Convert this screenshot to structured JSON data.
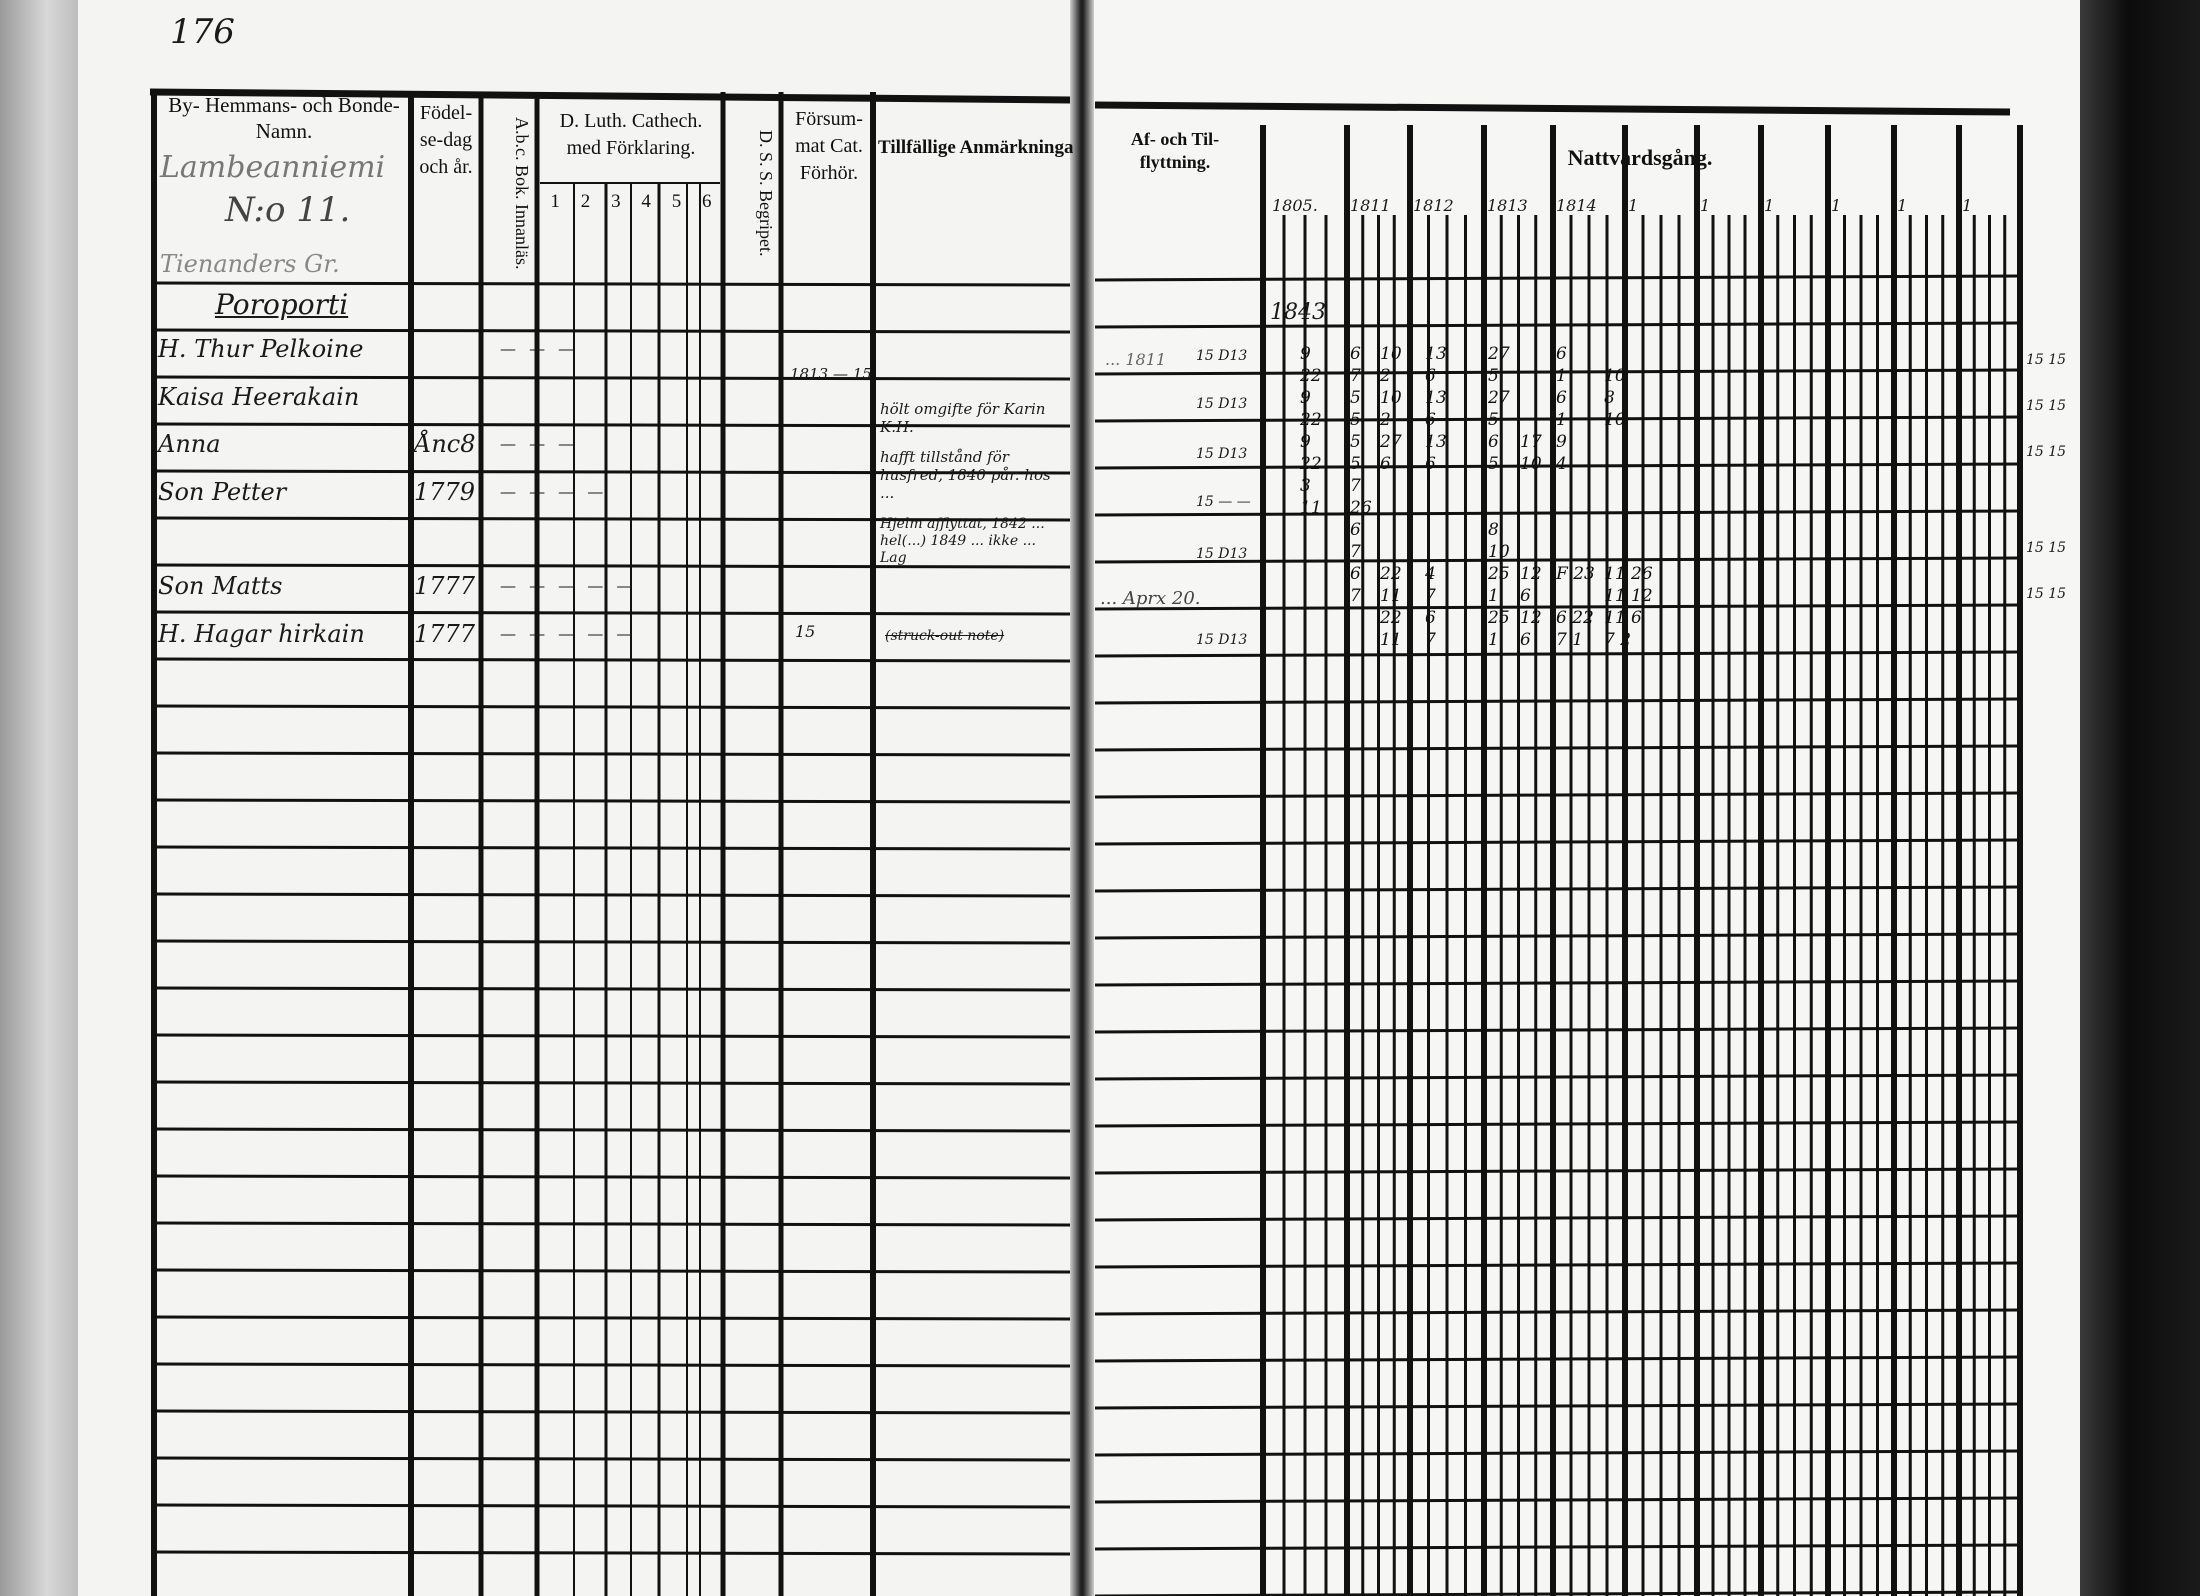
{
  "page_number": "176",
  "left_page": {
    "headers": {
      "name": "By- Hemmans- och Bonde-Namn.",
      "birth": "Födel-se-dag och år.",
      "abc": "A.b.c. Bok. Innanläs.",
      "catechism": "D. Luth. Cathech. med Förklaring.",
      "catechism_parts": [
        "1",
        "2",
        "3",
        "4",
        "5",
        "6"
      ],
      "dss": "D. S. S. Begripet.",
      "missed": "Försum-mat Cat. Förhör.",
      "remarks": "Tillfällige Anmärkningar."
    },
    "village": "Lambeanniemi",
    "farm_number": "N:o 11.",
    "sub_note": "Tienanders Gr.",
    "place": "Poroporti",
    "entries": [
      {
        "name": "H. Thur Pelkoine",
        "birth": "",
        "marks": "— — —"
      },
      {
        "name": "Kaisa Heerakain",
        "birth": "",
        "marks": ""
      },
      {
        "name": "Anna",
        "birth": "Ånc8",
        "marks": "— — —"
      },
      {
        "name": "Son Petter",
        "birth": "1779",
        "marks": "— — — —"
      },
      {
        "name": "Son Matts",
        "birth": "1777",
        "marks": "— — — — —"
      },
      {
        "name": "H. Hagar hirkain",
        "birth": "1777",
        "marks": "— — — — —"
      }
    ],
    "missed_marks": [
      "1813 — 15",
      "15"
    ],
    "remarks": [
      "hölt omgifte för Karin K.H.",
      "hafft tillstånd för husfred, 1840 pår. hos ...",
      "Hjelm afflyttat, 1842 ... hel(...) 1849 ... ikke ... Lag",
      "(struck-out note)"
    ]
  },
  "right_page": {
    "headers": {
      "moving": "Af- och Til- flyttning.",
      "communion": "Nattvardsgång.",
      "years": [
        "1805.",
        "1811",
        "1812",
        "1813",
        "1814",
        "1",
        "1",
        "1",
        "1",
        "1",
        "1"
      ]
    },
    "moving_notes": [
      "... 1811",
      "... Aprx 20."
    ],
    "moving_marks": [
      "15 D13",
      "15 D13",
      "15 D13",
      "15 — —",
      "15 D13",
      "15 D13"
    ],
    "corner_note": "1843",
    "margin_marks": [
      "15 15",
      "15 15",
      "15 15",
      "15 15",
      "15 15"
    ],
    "communion_rows": [
      [
        "9",
        "6",
        "10",
        "13",
        "27",
        "",
        "6",
        ""
      ],
      [
        "22",
        "7",
        "2",
        "6",
        "5",
        "",
        "1",
        "10"
      ],
      [
        "9",
        "5",
        "10",
        "13",
        "27",
        "",
        "6",
        "8"
      ],
      [
        "22",
        "5",
        "2",
        "6",
        "5",
        "",
        "1",
        "10"
      ],
      [
        "9",
        "5",
        "27",
        "13",
        "6",
        "17",
        "9",
        ""
      ],
      [
        "22",
        "5",
        "6",
        "6",
        "5",
        "10",
        "4",
        ""
      ],
      [
        "3",
        "7",
        "",
        "",
        "",
        "",
        "",
        ""
      ],
      [
        "11",
        "26",
        "",
        "",
        "",
        "",
        "",
        ""
      ],
      [
        "",
        "6",
        "",
        "",
        "8",
        "",
        "",
        ""
      ],
      [
        "",
        "7",
        "",
        "",
        "10",
        "",
        "",
        ""
      ],
      [
        "",
        "6",
        "22",
        "4",
        "25",
        "12",
        "F 23",
        "11 26"
      ],
      [
        "",
        "7",
        "11",
        "7",
        "1",
        "6",
        "",
        "11 12"
      ],
      [
        "",
        "",
        "22",
        "6",
        "25",
        "12",
        "6 22",
        "11 6"
      ],
      [
        "",
        "",
        "11",
        "7",
        "1",
        "6",
        "7 1",
        "7 2"
      ]
    ]
  },
  "colors": {
    "paper": "#f4f4f2",
    "ink": "#111111",
    "binding": "#0c0c0c"
  }
}
